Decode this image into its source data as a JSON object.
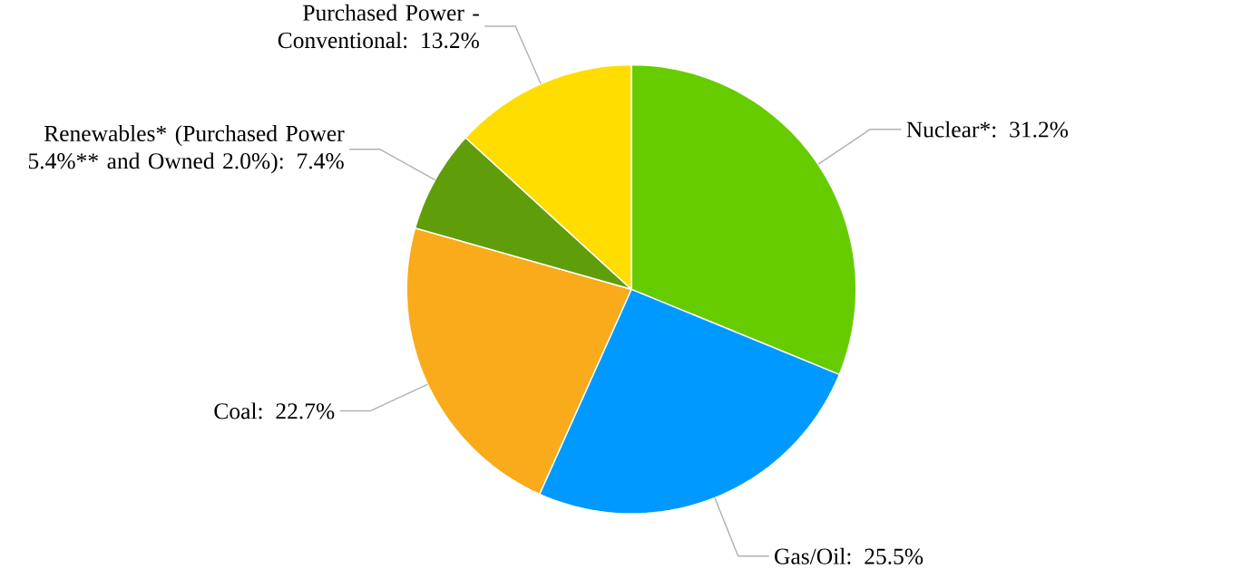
{
  "chart_data": {
    "type": "pie",
    "categories": [
      "Nuclear*: 31.2%",
      "Gas/Oil: 25.5%",
      "Coal: 22.7%",
      "Renewables* (Purchased Power 5.4%** and Owned 2.0%): 7.4%",
      "Purchased Power - Conventional: 13.2%"
    ],
    "values": [
      31.2,
      25.5,
      22.7,
      7.4,
      13.2
    ],
    "colors": [
      "#66cc00",
      "#0099ff",
      "#f9ab1c",
      "#5f9e0a",
      "#ffdd00"
    ]
  }
}
